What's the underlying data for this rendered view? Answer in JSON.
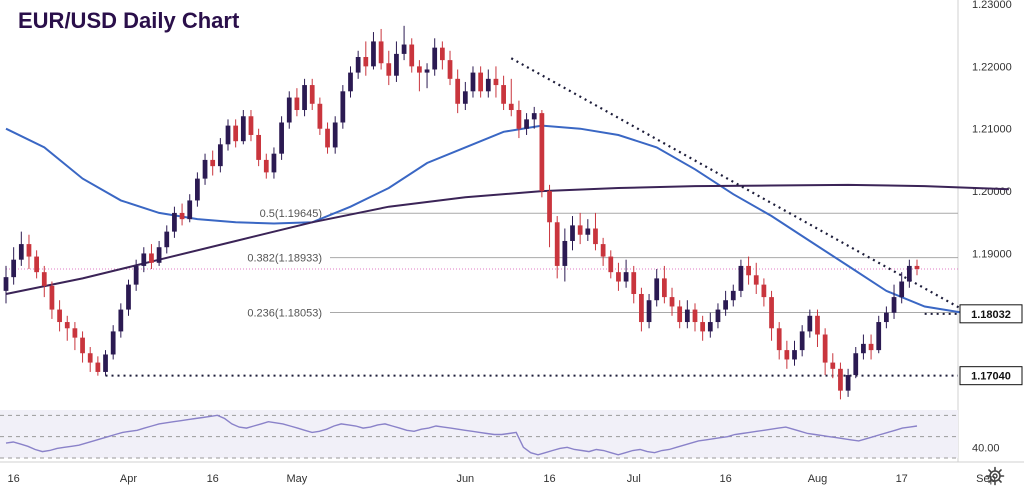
{
  "chart_data": {
    "type": "candlestick",
    "title": "EUR/USD Daily Chart",
    "ylim": [
      1.1665,
      1.23
    ],
    "y_ticks": [
      {
        "value": 1.23,
        "label": "1.23000"
      },
      {
        "value": 1.22,
        "label": "1.22000"
      },
      {
        "value": 1.21,
        "label": "1.21000"
      },
      {
        "value": 1.2,
        "label": "1.20000"
      },
      {
        "value": 1.19,
        "label": "1.19000"
      }
    ],
    "x_ticks": [
      {
        "bar": 1,
        "label": "16"
      },
      {
        "bar": 16,
        "label": "Apr"
      },
      {
        "bar": 27,
        "label": "16"
      },
      {
        "bar": 38,
        "label": "May"
      },
      {
        "bar": 60,
        "label": "Jun"
      },
      {
        "bar": 71,
        "label": "16"
      },
      {
        "bar": 82,
        "label": "Jul"
      },
      {
        "bar": 94,
        "label": "16"
      },
      {
        "bar": 106,
        "label": "Aug"
      },
      {
        "bar": 117,
        "label": "17"
      },
      {
        "bar": 128,
        "label": "Sep"
      }
    ],
    "price_labels": [
      {
        "value": 1.18032,
        "label": "1.18032"
      },
      {
        "value": 1.1704,
        "label": "1.17040"
      }
    ],
    "fibonacci": [
      {
        "value": 1.19645,
        "label": "0.5(1.19645)"
      },
      {
        "value": 1.18933,
        "label": "0.382(1.18933)"
      },
      {
        "value": 1.18053,
        "label": "0.236(1.18053)"
      }
    ],
    "series": [
      {
        "name": "",
        "style": "short_moving_average",
        "color": "#3a67c4",
        "points": [
          [
            0,
            1.21
          ],
          [
            5,
            1.207
          ],
          [
            10,
            1.202
          ],
          [
            15,
            1.1985
          ],
          [
            20,
            1.1965
          ],
          [
            25,
            1.1955
          ],
          [
            30,
            1.195
          ],
          [
            35,
            1.1948
          ],
          [
            40,
            1.195
          ],
          [
            45,
            1.1975
          ],
          [
            50,
            1.2005
          ],
          [
            55,
            1.2045
          ],
          [
            60,
            1.207
          ],
          [
            65,
            1.2095
          ],
          [
            70,
            1.2105
          ],
          [
            75,
            1.21
          ],
          [
            80,
            1.209
          ],
          [
            85,
            1.207
          ],
          [
            90,
            1.2035
          ],
          [
            95,
            1.1995
          ],
          [
            100,
            1.196
          ],
          [
            105,
            1.192
          ],
          [
            110,
            1.188
          ],
          [
            115,
            1.184
          ],
          [
            120,
            1.1815
          ],
          [
            125,
            1.1805
          ],
          [
            128,
            1.1803
          ]
        ]
      },
      {
        "name": "",
        "style": "long_moving_average",
        "color": "#3b2457",
        "points": [
          [
            0,
            1.1835
          ],
          [
            10,
            1.186
          ],
          [
            20,
            1.189
          ],
          [
            30,
            1.192
          ],
          [
            40,
            1.195
          ],
          [
            50,
            1.1975
          ],
          [
            60,
            1.199
          ],
          [
            70,
            1.2
          ],
          [
            80,
            1.2005
          ],
          [
            90,
            1.2008
          ],
          [
            100,
            1.2009
          ],
          [
            110,
            1.201
          ],
          [
            120,
            1.2008
          ],
          [
            131,
            1.2003
          ]
        ]
      }
    ],
    "candles": [],
    "trendlines": [
      {
        "from": [
          66,
          1.2213
        ],
        "to": [
          126,
          1.1803
        ],
        "style": "dotted"
      }
    ],
    "horizontal_levels": [
      {
        "value": 1.1704,
        "from_bar": 13,
        "style": "dotted"
      },
      {
        "value": 1.18032,
        "from_bar": 120,
        "style": "dotted"
      },
      {
        "value": 1.1875,
        "from_bar": 0,
        "style": "dotted-pink"
      }
    ],
    "rsi": {
      "ylim": [
        30,
        75
      ],
      "y_ticks": [
        {
          "value": 40,
          "label": "40.00"
        }
      ],
      "levels": [
        70,
        50,
        30
      ],
      "color": "#8a82c9",
      "values": []
    },
    "colors": {
      "up": "#2b1a52",
      "down": "#c9353d",
      "grid": "#b9b9b9",
      "fib": "#a9a9a9"
    }
  },
  "candle_source": [
    [
      1.184,
      1.1862,
      1.188,
      1.182
    ],
    [
      1.1862,
      1.189,
      1.191,
      1.185
    ],
    [
      1.189,
      1.1915,
      1.1935,
      1.188
    ],
    [
      1.1915,
      1.1895,
      1.193,
      1.1875
    ],
    [
      1.1895,
      1.187,
      1.1905,
      1.186
    ],
    [
      1.187,
      1.1848,
      1.188,
      1.183
    ],
    [
      1.1848,
      1.181,
      1.1855,
      1.1795
    ],
    [
      1.181,
      1.179,
      1.1825,
      1.1775
    ],
    [
      1.179,
      1.178,
      1.18,
      1.176
    ],
    [
      1.178,
      1.1765,
      1.179,
      1.1745
    ],
    [
      1.1765,
      1.174,
      1.1775,
      1.1725
    ],
    [
      1.174,
      1.1725,
      1.175,
      1.171
    ],
    [
      1.1725,
      1.171,
      1.1735,
      1.1704
    ],
    [
      1.171,
      1.1738,
      1.1745,
      1.1704
    ],
    [
      1.1738,
      1.1775,
      1.1785,
      1.173
    ],
    [
      1.1775,
      1.181,
      1.182,
      1.1765
    ],
    [
      1.181,
      1.185,
      1.1858,
      1.18
    ],
    [
      1.185,
      1.188,
      1.189,
      1.184
    ],
    [
      1.188,
      1.19,
      1.191,
      1.187
    ],
    [
      1.19,
      1.1885,
      1.1915,
      1.1875
    ],
    [
      1.1885,
      1.191,
      1.192,
      1.188
    ],
    [
      1.191,
      1.1935,
      1.1945,
      1.19
    ],
    [
      1.1935,
      1.1965,
      1.1975,
      1.1925
    ],
    [
      1.1965,
      1.1955,
      1.198,
      1.1945
    ],
    [
      1.1955,
      1.1985,
      1.1995,
      1.195
    ],
    [
      1.1985,
      1.202,
      1.203,
      1.1975
    ],
    [
      1.202,
      1.205,
      1.206,
      1.201
    ],
    [
      1.205,
      1.204,
      1.2065,
      1.2025
    ],
    [
      1.204,
      1.2075,
      1.2085,
      1.203
    ],
    [
      1.2075,
      1.2105,
      1.2115,
      1.2065
    ],
    [
      1.2105,
      1.208,
      1.2115,
      1.207
    ],
    [
      1.208,
      1.212,
      1.213,
      1.2075
    ],
    [
      1.212,
      1.209,
      1.213,
      1.208
    ],
    [
      1.209,
      1.205,
      1.21,
      1.204
    ],
    [
      1.205,
      1.203,
      1.206,
      1.202
    ],
    [
      1.203,
      1.206,
      1.207,
      1.202
    ],
    [
      1.206,
      1.211,
      1.212,
      1.205
    ],
    [
      1.211,
      1.215,
      1.216,
      1.21
    ],
    [
      1.215,
      1.213,
      1.2165,
      1.212
    ],
    [
      1.213,
      1.217,
      1.218,
      1.212
    ],
    [
      1.217,
      1.214,
      1.218,
      1.213
    ],
    [
      1.214,
      1.21,
      1.215,
      1.209
    ],
    [
      1.21,
      1.207,
      1.211,
      1.206
    ],
    [
      1.207,
      1.211,
      1.212,
      1.206
    ],
    [
      1.211,
      1.216,
      1.217,
      1.21
    ],
    [
      1.216,
      1.219,
      1.22,
      1.215
    ],
    [
      1.219,
      1.2215,
      1.2225,
      1.218
    ],
    [
      1.2215,
      1.22,
      1.224,
      1.2185
    ],
    [
      1.22,
      1.224,
      1.2255,
      1.2195
    ],
    [
      1.224,
      1.2205,
      1.226,
      1.2195
    ],
    [
      1.2205,
      1.2185,
      1.2225,
      1.217
    ],
    [
      1.2185,
      1.222,
      1.224,
      1.2175
    ],
    [
      1.222,
      1.2235,
      1.2265,
      1.221
    ],
    [
      1.2235,
      1.22,
      1.2245,
      1.219
    ],
    [
      1.22,
      1.219,
      1.221,
      1.216
    ],
    [
      1.219,
      1.2195,
      1.2205,
      1.2165
    ],
    [
      1.2195,
      1.223,
      1.2245,
      1.2185
    ],
    [
      1.223,
      1.221,
      1.224,
      1.2195
    ],
    [
      1.221,
      1.218,
      1.2225,
      1.217
    ],
    [
      1.218,
      1.214,
      1.2195,
      1.2125
    ],
    [
      1.214,
      1.216,
      1.2175,
      1.213
    ],
    [
      1.216,
      1.219,
      1.22,
      1.215
    ],
    [
      1.219,
      1.216,
      1.22,
      1.215
    ],
    [
      1.216,
      1.218,
      1.2195,
      1.215
    ],
    [
      1.218,
      1.217,
      1.22,
      1.215
    ],
    [
      1.217,
      1.214,
      1.2185,
      1.213
    ],
    [
      1.214,
      1.213,
      1.218,
      1.212
    ],
    [
      1.213,
      1.21,
      1.2145,
      1.2085
    ],
    [
      1.21,
      1.2115,
      1.2125,
      1.209
    ],
    [
      1.2115,
      1.2125,
      1.2135,
      1.21
    ],
    [
      1.2125,
      1.2,
      1.213,
      1.199
    ],
    [
      1.2,
      1.195,
      1.201,
      1.191
    ],
    [
      1.195,
      1.188,
      1.196,
      1.186
    ],
    [
      1.188,
      1.192,
      1.194,
      1.1855
    ],
    [
      1.192,
      1.1945,
      1.196,
      1.1905
    ],
    [
      1.1945,
      1.193,
      1.1965,
      1.1915
    ],
    [
      1.193,
      1.194,
      1.1955,
      1.192
    ],
    [
      1.194,
      1.1915,
      1.1965,
      1.1905
    ],
    [
      1.1915,
      1.1895,
      1.1925,
      1.188
    ],
    [
      1.1895,
      1.187,
      1.1905,
      1.186
    ],
    [
      1.187,
      1.1855,
      1.1885,
      1.184
    ],
    [
      1.1855,
      1.187,
      1.189,
      1.1845
    ],
    [
      1.187,
      1.1835,
      1.188,
      1.182
    ],
    [
      1.1835,
      1.179,
      1.1845,
      1.1775
    ],
    [
      1.179,
      1.1825,
      1.1835,
      1.178
    ],
    [
      1.1825,
      1.186,
      1.1875,
      1.1815
    ],
    [
      1.186,
      1.183,
      1.188,
      1.182
    ],
    [
      1.183,
      1.1815,
      1.1845,
      1.18
    ],
    [
      1.1815,
      1.179,
      1.1825,
      1.178
    ],
    [
      1.179,
      1.181,
      1.1825,
      1.178
    ],
    [
      1.181,
      1.179,
      1.182,
      1.1775
    ],
    [
      1.179,
      1.1775,
      1.18,
      1.176
    ],
    [
      1.1775,
      1.179,
      1.1805,
      1.1765
    ],
    [
      1.179,
      1.181,
      1.182,
      1.178
    ],
    [
      1.181,
      1.1825,
      1.184,
      1.18
    ],
    [
      1.1825,
      1.184,
      1.185,
      1.1815
    ],
    [
      1.184,
      1.188,
      1.189,
      1.183
    ],
    [
      1.188,
      1.1865,
      1.1895,
      1.185
    ],
    [
      1.1865,
      1.185,
      1.1885,
      1.1835
    ],
    [
      1.185,
      1.183,
      1.186,
      1.1815
    ],
    [
      1.183,
      1.178,
      1.184,
      1.176
    ],
    [
      1.178,
      1.1745,
      1.179,
      1.173
    ],
    [
      1.1745,
      1.173,
      1.176,
      1.1715
    ],
    [
      1.173,
      1.1745,
      1.176,
      1.172
    ],
    [
      1.1745,
      1.1775,
      1.1785,
      1.1735
    ],
    [
      1.1775,
      1.18,
      1.181,
      1.1765
    ],
    [
      1.18,
      1.177,
      1.181,
      1.175
    ],
    [
      1.177,
      1.1725,
      1.178,
      1.1705
    ],
    [
      1.1725,
      1.1715,
      1.174,
      1.17
    ],
    [
      1.1715,
      1.168,
      1.1725,
      1.1666
    ],
    [
      1.168,
      1.1705,
      1.1715,
      1.167
    ],
    [
      1.1705,
      1.174,
      1.175,
      1.17
    ],
    [
      1.174,
      1.1755,
      1.177,
      1.173
    ],
    [
      1.1755,
      1.1745,
      1.177,
      1.173
    ],
    [
      1.1745,
      1.179,
      1.18,
      1.174
    ],
    [
      1.179,
      1.1805,
      1.1815,
      1.178
    ],
    [
      1.1805,
      1.183,
      1.185,
      1.1795
    ],
    [
      1.183,
      1.1855,
      1.187,
      1.182
    ],
    [
      1.1855,
      1.188,
      1.189,
      1.1845
    ],
    [
      1.188,
      1.1875,
      1.189,
      1.1865
    ]
  ],
  "rsi_source": [
    44,
    45,
    43,
    41,
    38,
    36,
    37,
    39,
    40,
    41,
    42,
    44,
    46,
    48,
    50,
    52,
    54,
    55,
    56,
    58,
    60,
    62,
    63,
    64,
    65,
    66,
    67,
    68,
    69,
    70,
    67,
    62,
    59,
    58,
    60,
    62,
    64,
    63,
    62,
    60,
    58,
    56,
    54,
    55,
    57,
    60,
    62,
    61,
    60,
    58,
    59,
    61,
    62,
    60,
    58,
    56,
    55,
    57,
    58,
    60,
    59,
    58,
    57,
    56,
    55,
    54,
    53,
    52,
    52,
    53,
    54,
    40,
    35,
    33,
    35,
    37,
    39,
    40,
    38,
    37,
    36,
    38,
    37,
    35,
    33,
    35,
    37,
    38,
    36,
    35,
    37,
    38,
    40,
    42,
    44,
    46,
    47,
    48,
    49,
    50,
    52,
    53,
    54,
    55,
    56,
    57,
    58,
    59,
    57,
    55,
    53,
    52,
    51,
    50,
    49,
    48,
    47,
    46,
    48,
    50,
    52,
    54,
    56,
    58,
    59,
    60
  ]
}
